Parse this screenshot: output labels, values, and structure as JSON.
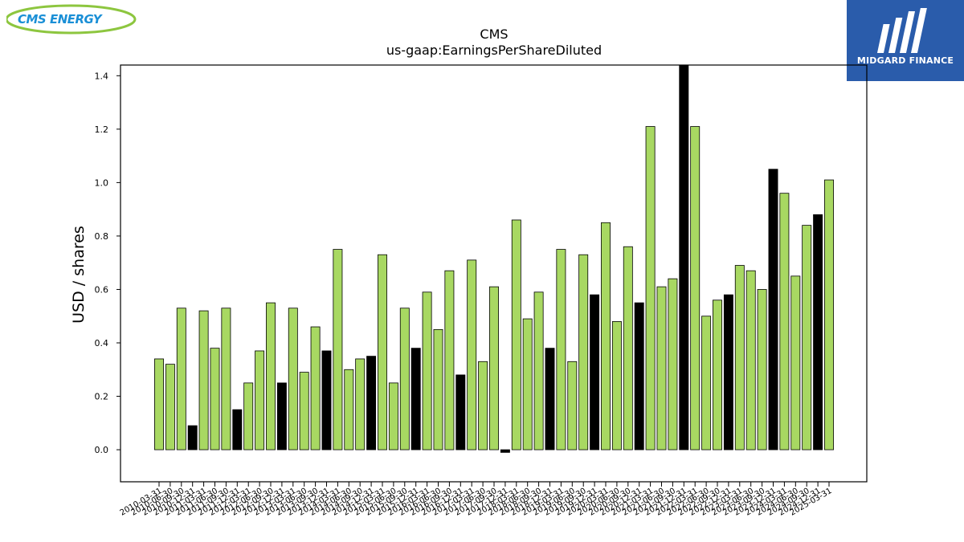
{
  "logos": {
    "left_text": "CMS ENERGY",
    "right_text": "MIDGARD FINANCE",
    "left_icon": "cms-energy-logo",
    "right_icon": "midgard-finance-logo"
  },
  "colors": {
    "positive": "#a8d862",
    "highlight": "#000000",
    "logo_blue": "#2a5cab",
    "logo_green": "#8dc63f"
  },
  "chart_data": {
    "type": "bar",
    "title": "CMS",
    "subtitle": "us-gaap:EarningsPerShareDiluted",
    "ylabel": "USD / shares",
    "xlabel": "",
    "ylim": [
      -0.12,
      1.44
    ],
    "yticks": [
      "0.0",
      "0.2",
      "0.4",
      "0.6",
      "0.8",
      "1.0",
      "1.2",
      "1.4"
    ],
    "grid": false,
    "categories": [
      "2010-03-31",
      "2010-06-30",
      "2010-09-30",
      "2010-12-31",
      "2011-03-31",
      "2011-06-30",
      "2011-09-30",
      "2011-12-31",
      "2012-03-31",
      "2012-06-30",
      "2012-09-30",
      "2012-12-31",
      "2013-03-31",
      "2013-06-30",
      "2013-09-30",
      "2013-12-31",
      "2014-03-31",
      "2014-06-30",
      "2014-09-30",
      "2014-12-31",
      "2015-03-31",
      "2015-06-30",
      "2015-09-30",
      "2015-12-31",
      "2016-03-31",
      "2016-06-30",
      "2016-09-30",
      "2016-12-31",
      "2017-03-31",
      "2017-06-30",
      "2017-09-30",
      "2017-12-31",
      "2018-03-31",
      "2018-06-30",
      "2018-09-30",
      "2018-12-31",
      "2019-03-31",
      "2019-06-30",
      "2019-09-30",
      "2019-12-31",
      "2020-03-31",
      "2020-06-30",
      "2020-09-30",
      "2020-12-31",
      "2021-03-31",
      "2021-06-30",
      "2021-09-30",
      "2021-12-31",
      "2022-03-31",
      "2022-06-30",
      "2022-09-30",
      "2022-12-31",
      "2023-03-31",
      "2023-06-30",
      "2023-09-30",
      "2023-12-31",
      "2024-03-31",
      "2024-06-30",
      "2024-09-30",
      "2024-12-31",
      "2025-03-31"
    ],
    "values": [
      0.34,
      0.32,
      0.53,
      0.09,
      0.52,
      0.38,
      0.53,
      0.15,
      0.25,
      0.37,
      0.55,
      0.25,
      0.53,
      0.29,
      0.46,
      0.37,
      0.75,
      0.3,
      0.34,
      0.35,
      0.73,
      0.25,
      0.53,
      0.38,
      0.59,
      0.45,
      0.67,
      0.28,
      0.71,
      0.33,
      0.61,
      -0.01,
      0.86,
      0.49,
      0.59,
      0.38,
      0.75,
      0.33,
      0.73,
      0.58,
      0.85,
      0.48,
      0.76,
      0.55,
      1.21,
      0.61,
      0.64,
      1.44,
      1.21,
      0.5,
      0.56,
      0.58,
      0.69,
      0.67,
      0.6,
      1.05,
      0.96,
      0.65,
      0.84,
      0.88,
      1.01
    ],
    "highlight": [
      3,
      7,
      11,
      15,
      19,
      23,
      27,
      31,
      35,
      39,
      43,
      47,
      51,
      55,
      59
    ]
  }
}
